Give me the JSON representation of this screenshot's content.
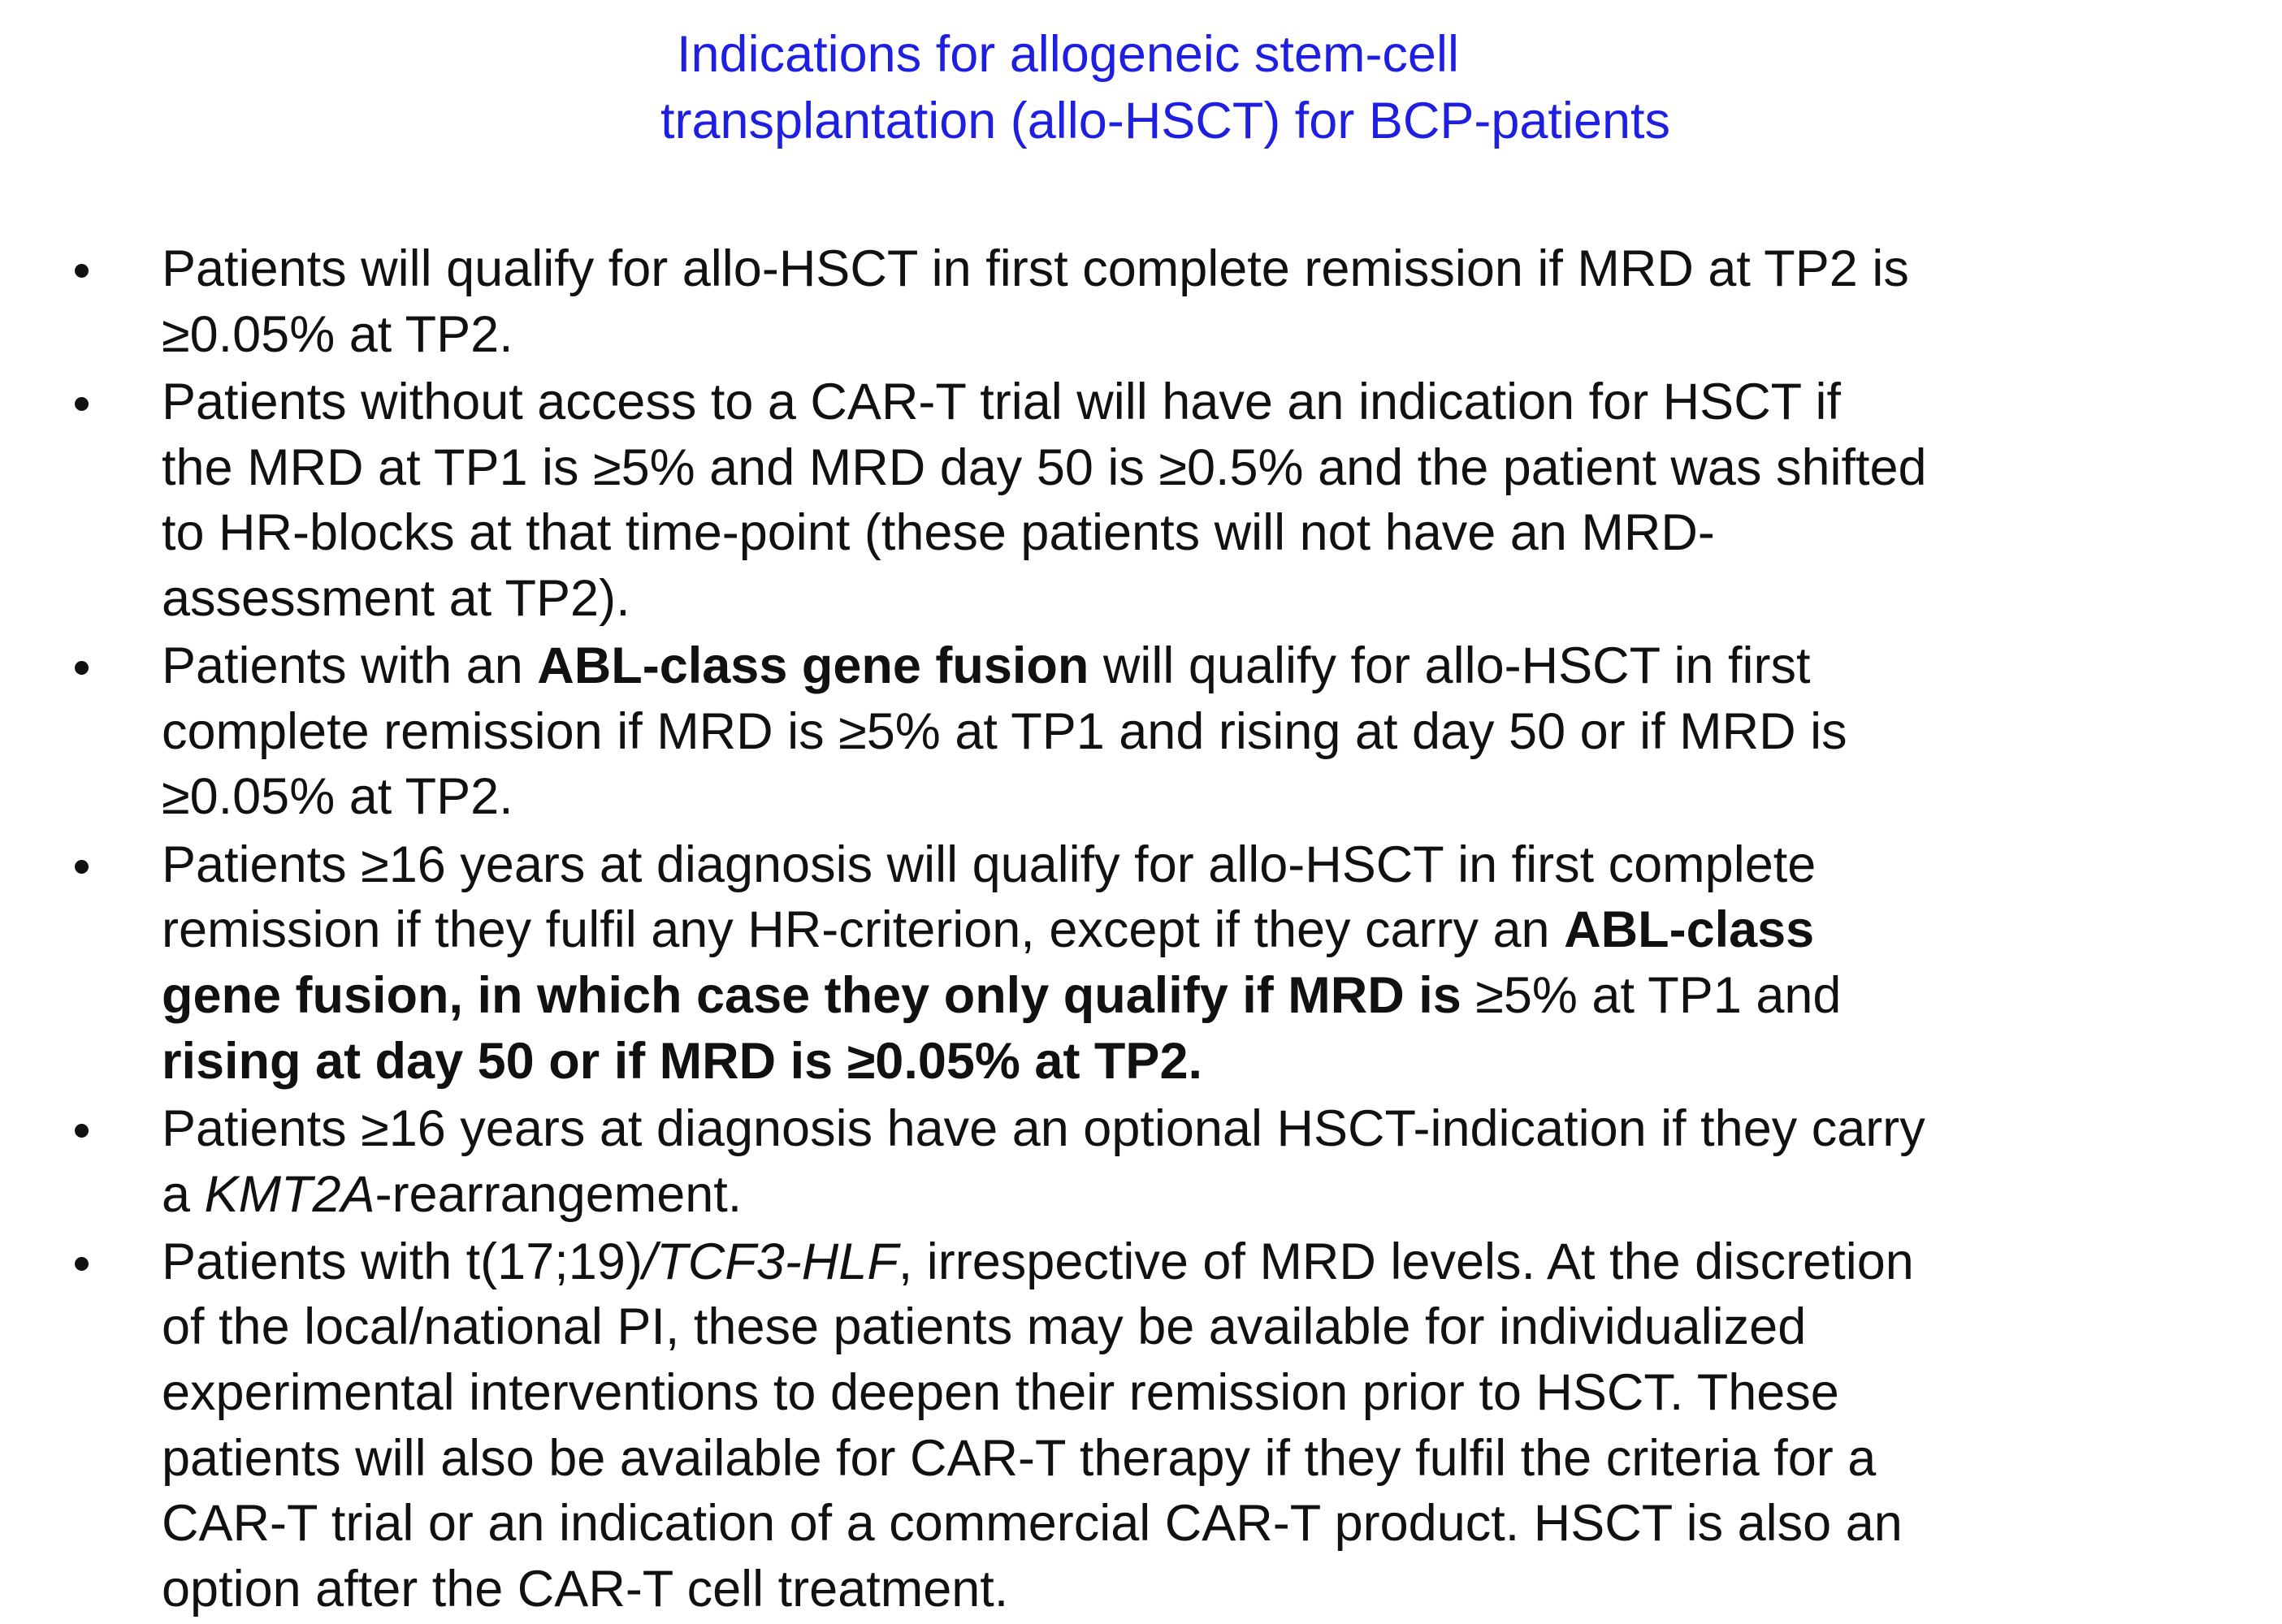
{
  "title": {
    "line1": "Indications for allogeneic stem-cell",
    "line2": "transplantation (allo-HSCT) for BCP-patients",
    "color": "#1f1fe0"
  },
  "bullets": [
    {
      "lines": [
        [
          {
            "t": "Patients will qualify for allo-HSCT in first complete remission if MRD at TP2 is"
          }
        ],
        [
          {
            "t": "≥0.05% at TP2."
          }
        ]
      ]
    },
    {
      "lines": [
        [
          {
            "t": "Patients without access to a CAR-T trial will have an indication for HSCT if"
          }
        ],
        [
          {
            "t": "the MRD at TP1 is ≥5% and MRD day 50 is ≥0.5% and the patient was shifted"
          }
        ],
        [
          {
            "t": "to HR-blocks at that time-point (these patients will not have an MRD-"
          }
        ],
        [
          {
            "t": "assessment at TP2)."
          }
        ]
      ]
    },
    {
      "lines": [
        [
          {
            "t": "Patients with an "
          },
          {
            "t": "ABL-class gene fusion",
            "b": true
          },
          {
            "t": " will qualify for allo-HSCT in first"
          }
        ],
        [
          {
            "t": "complete remission if MRD is ≥5% at TP1 and rising at day 50 or if MRD is"
          }
        ],
        [
          {
            "t": "≥0.05% at TP2."
          }
        ]
      ]
    },
    {
      "lines": [
        [
          {
            "t": "Patients ≥16 years at diagnosis will qualify for allo-HSCT in first complete"
          }
        ],
        [
          {
            "t": "remission if they fulfil any HR-criterion, except if they carry an "
          },
          {
            "t": "ABL-class",
            "b": true
          }
        ],
        [
          {
            "t": "gene fusion, in which case they only qualify if MRD is",
            "b": true
          },
          {
            "t": " ≥5% at TP1 and"
          }
        ],
        [
          {
            "t": "rising at day 50 or if MRD is ≥0.05% at TP2.",
            "b": true
          }
        ]
      ]
    },
    {
      "lines": [
        [
          {
            "t": "Patients ≥16 years at diagnosis have an optional HSCT-indication if they carry"
          }
        ],
        [
          {
            "t": "a "
          },
          {
            "t": "KMT2A",
            "i": true
          },
          {
            "t": "-rearrangement."
          }
        ]
      ]
    },
    {
      "lines": [
        [
          {
            "t": "Patients with t(17;19)"
          },
          {
            "t": "/TCF3-HLF",
            "i": true
          },
          {
            "t": ", irrespective of MRD levels. At the discretion"
          }
        ],
        [
          {
            "t": "of the local/national PI, these patients may be available for individualized"
          }
        ],
        [
          {
            "t": "experimental interventions to deepen their remission prior to HSCT. These"
          }
        ],
        [
          {
            "t": "patients will also be available for CAR-T therapy if they fulfil the criteria for a"
          }
        ],
        [
          {
            "t": "CAR-T trial or an indication of a commercial CAR-T product. HSCT is also an"
          }
        ],
        [
          {
            "t": "option after the CAR-T cell treatment."
          }
        ]
      ]
    }
  ]
}
